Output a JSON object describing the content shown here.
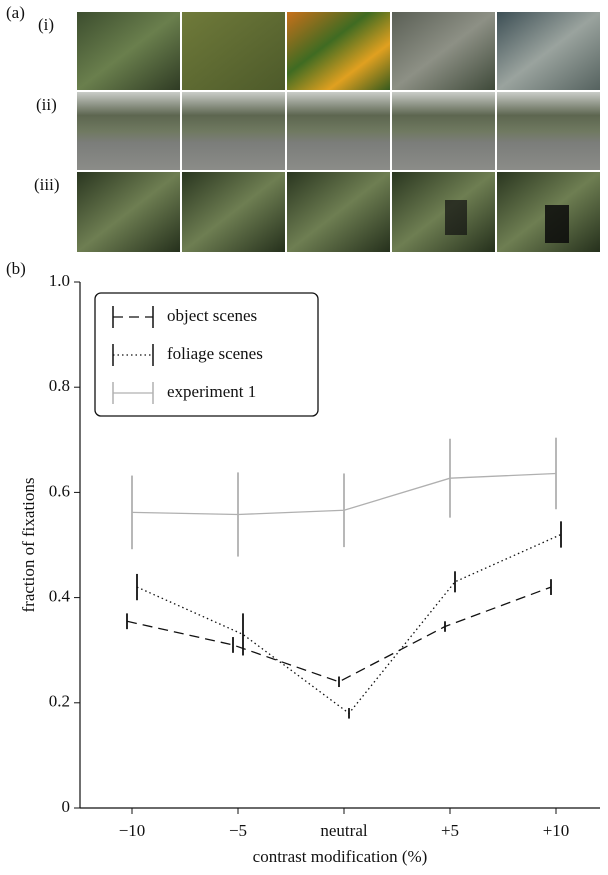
{
  "panel_labels": {
    "a": "(a)",
    "b": "(b)",
    "rows": [
      "(i)",
      "(ii)",
      "(iii)"
    ]
  },
  "chart_data": {
    "type": "line",
    "categories": [
      "−10",
      "−5",
      "neutral",
      "+5",
      "+10"
    ],
    "xlabel": "contrast modification (%)",
    "ylabel": "fraction of fixations",
    "ylim": [
      0,
      1
    ],
    "yticks": [
      0,
      0.2,
      0.4,
      0.6,
      0.8,
      {
        "value": 1,
        "label": "1.0"
      }
    ],
    "legend": "upper left",
    "series": [
      {
        "name": "object scenes",
        "color": "#111111",
        "dash": "dashed",
        "values": [
          0.355,
          0.31,
          0.24,
          0.345,
          0.42
        ],
        "errors": [
          0.015,
          0.015,
          0.01,
          0.01,
          0.015
        ]
      },
      {
        "name": "foliage scenes",
        "color": "#111111",
        "dash": "dotted",
        "values": [
          0.42,
          0.33,
          0.18,
          0.43,
          0.52
        ],
        "errors": [
          0.025,
          0.04,
          0.01,
          0.02,
          0.025
        ]
      },
      {
        "name": "experiment 1",
        "color": "#b0b0b0",
        "dash": "solid",
        "values": [
          0.562,
          0.558,
          0.566,
          0.627,
          0.636
        ],
        "errors": [
          0.07,
          0.08,
          0.07,
          0.075,
          0.068
        ]
      }
    ]
  }
}
